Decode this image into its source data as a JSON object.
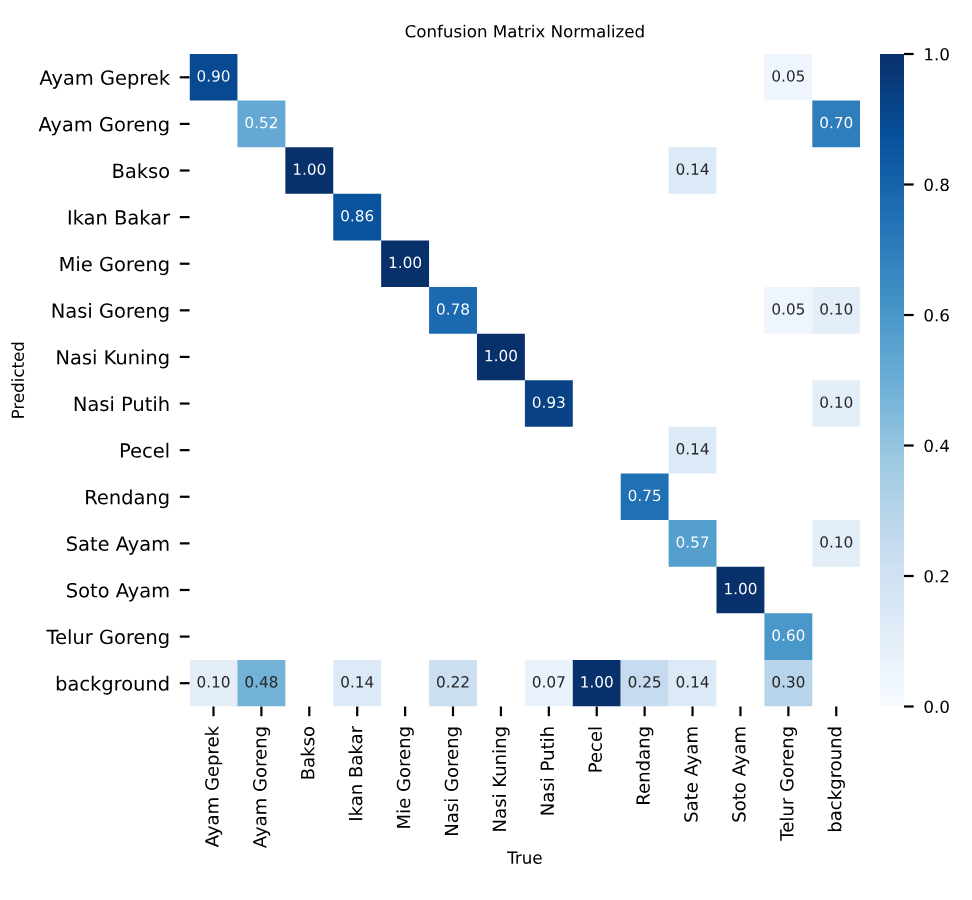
{
  "chart_data": {
    "type": "heatmap",
    "title": "Confusion Matrix Normalized",
    "xlabel": "True",
    "ylabel": "Predicted",
    "categories": [
      "Ayam Geprek",
      "Ayam Goreng",
      "Bakso",
      "Ikan Bakar",
      "Mie Goreng",
      "Nasi Goreng",
      "Nasi Kuning",
      "Nasi Putih",
      "Pecel",
      "Rendang",
      "Sate Ayam",
      "Soto Ayam",
      "Telur Goreng",
      "background"
    ],
    "y_categories": [
      "Ayam Geprek",
      "Ayam Goreng",
      "Bakso",
      "Ikan Bakar",
      "Mie Goreng",
      "Nasi Goreng",
      "Nasi Kuning",
      "Nasi Putih",
      "Pecel",
      "Rendang",
      "Sate Ayam",
      "Soto Ayam",
      "Telur Goreng",
      "background"
    ],
    "cells": [
      [
        0.9,
        null,
        null,
        null,
        null,
        null,
        null,
        null,
        null,
        null,
        null,
        null,
        0.05,
        null
      ],
      [
        null,
        0.52,
        null,
        null,
        null,
        null,
        null,
        null,
        null,
        null,
        null,
        null,
        null,
        0.7
      ],
      [
        null,
        null,
        1.0,
        null,
        null,
        null,
        null,
        null,
        null,
        null,
        0.14,
        null,
        null,
        null
      ],
      [
        null,
        null,
        null,
        0.86,
        null,
        null,
        null,
        null,
        null,
        null,
        null,
        null,
        null,
        null
      ],
      [
        null,
        null,
        null,
        null,
        1.0,
        null,
        null,
        null,
        null,
        null,
        null,
        null,
        null,
        null
      ],
      [
        null,
        null,
        null,
        null,
        null,
        0.78,
        null,
        null,
        null,
        null,
        null,
        null,
        0.05,
        0.1
      ],
      [
        null,
        null,
        null,
        null,
        null,
        null,
        1.0,
        null,
        null,
        null,
        null,
        null,
        null,
        null
      ],
      [
        null,
        null,
        null,
        null,
        null,
        null,
        null,
        0.93,
        null,
        null,
        null,
        null,
        null,
        0.1
      ],
      [
        null,
        null,
        null,
        null,
        null,
        null,
        null,
        null,
        null,
        null,
        0.14,
        null,
        null,
        null
      ],
      [
        null,
        null,
        null,
        null,
        null,
        null,
        null,
        null,
        null,
        0.75,
        null,
        null,
        null,
        null
      ],
      [
        null,
        null,
        null,
        null,
        null,
        null,
        null,
        null,
        null,
        null,
        0.57,
        null,
        null,
        0.1
      ],
      [
        null,
        null,
        null,
        null,
        null,
        null,
        null,
        null,
        null,
        null,
        null,
        1.0,
        null,
        null
      ],
      [
        null,
        null,
        null,
        null,
        null,
        null,
        null,
        null,
        null,
        null,
        null,
        null,
        0.6,
        null
      ],
      [
        0.1,
        0.48,
        null,
        0.14,
        null,
        0.22,
        null,
        0.07,
        1.0,
        0.25,
        0.14,
        null,
        0.3,
        null
      ]
    ],
    "cell_labels": [
      [
        "0.90",
        null,
        null,
        null,
        null,
        null,
        null,
        null,
        null,
        null,
        null,
        null,
        "0.05",
        null
      ],
      [
        null,
        "0.52",
        null,
        null,
        null,
        null,
        null,
        null,
        null,
        null,
        null,
        null,
        null,
        "0.70"
      ],
      [
        null,
        null,
        "1.00",
        null,
        null,
        null,
        null,
        null,
        null,
        null,
        "0.14",
        null,
        null,
        null
      ],
      [
        null,
        null,
        null,
        "0.86",
        null,
        null,
        null,
        null,
        null,
        null,
        null,
        null,
        null,
        null
      ],
      [
        null,
        null,
        null,
        null,
        "1.00",
        null,
        null,
        null,
        null,
        null,
        null,
        null,
        null,
        null
      ],
      [
        null,
        null,
        null,
        null,
        null,
        "0.78",
        null,
        null,
        null,
        null,
        null,
        null,
        "0.05",
        "0.10"
      ],
      [
        null,
        null,
        null,
        null,
        null,
        null,
        "1.00",
        null,
        null,
        null,
        null,
        null,
        null,
        null
      ],
      [
        null,
        null,
        null,
        null,
        null,
        null,
        null,
        "0.93",
        null,
        null,
        null,
        null,
        null,
        "0.10"
      ],
      [
        null,
        null,
        null,
        null,
        null,
        null,
        null,
        null,
        null,
        null,
        "0.14",
        null,
        null,
        null
      ],
      [
        null,
        null,
        null,
        null,
        null,
        null,
        null,
        null,
        null,
        "0.75",
        null,
        null,
        null,
        null
      ],
      [
        null,
        null,
        null,
        null,
        null,
        null,
        null,
        null,
        null,
        null,
        "0.57",
        null,
        null,
        "0.10"
      ],
      [
        null,
        null,
        null,
        null,
        null,
        null,
        null,
        null,
        null,
        null,
        null,
        "1.00",
        null,
        null
      ],
      [
        null,
        null,
        null,
        null,
        null,
        null,
        null,
        null,
        null,
        null,
        null,
        null,
        "0.60",
        null
      ],
      [
        "0.10",
        "0.48",
        null,
        "0.14",
        null,
        "0.22",
        null,
        "0.07",
        "1.00",
        "0.25",
        "0.14",
        null,
        "0.30",
        null
      ]
    ],
    "clim": [
      0,
      1
    ],
    "cticks": [
      {
        "value": 0,
        "label": "0.0"
      },
      {
        "value": 0.2,
        "label": "0.2"
      },
      {
        "value": 0.4,
        "label": "0.4"
      },
      {
        "value": 0.6,
        "label": "0.6"
      },
      {
        "value": 0.8,
        "label": "0.8"
      },
      {
        "value": 1,
        "label": "1.0"
      }
    ]
  }
}
